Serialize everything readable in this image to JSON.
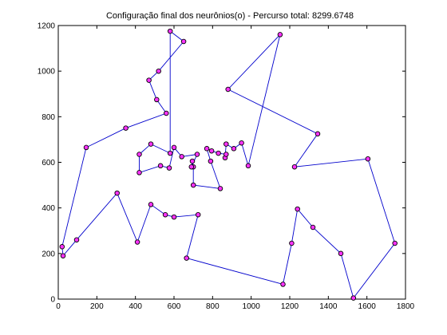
{
  "chart_data": {
    "type": "line",
    "title": "Configuração final dos neurônios(o) - Percurso total: 8299.6748",
    "xlabel": "",
    "ylabel": "",
    "xlim": [
      0,
      1800
    ],
    "ylim": [
      0,
      1200
    ],
    "xticks": [
      0,
      200,
      400,
      600,
      800,
      1000,
      1200,
      1400,
      1600,
      1800
    ],
    "yticks": [
      0,
      200,
      400,
      600,
      800,
      1000,
      1200
    ],
    "closed": true,
    "line_color": "#0000cc",
    "marker_color": "#ff33ff",
    "points": [
      [
        580,
        1175
      ],
      [
        650,
        1130
      ],
      [
        520,
        1000
      ],
      [
        470,
        960
      ],
      [
        510,
        875
      ],
      [
        560,
        815
      ],
      [
        350,
        750
      ],
      [
        145,
        665
      ],
      [
        20,
        230
      ],
      [
        25,
        190
      ],
      [
        95,
        260
      ],
      [
        305,
        465
      ],
      [
        410,
        250
      ],
      [
        480,
        415
      ],
      [
        555,
        370
      ],
      [
        600,
        360
      ],
      [
        725,
        370
      ],
      [
        665,
        180
      ],
      [
        1165,
        65
      ],
      [
        1210,
        245
      ],
      [
        1240,
        395
      ],
      [
        1320,
        315
      ],
      [
        1465,
        200
      ],
      [
        1530,
        5
      ],
      [
        1745,
        245
      ],
      [
        1605,
        615
      ],
      [
        1225,
        580
      ],
      [
        1345,
        725
      ],
      [
        880,
        920
      ],
      [
        1150,
        1160
      ],
      [
        985,
        585
      ],
      [
        950,
        685
      ],
      [
        910,
        660
      ],
      [
        870,
        680
      ],
      [
        865,
        620
      ],
      [
        870,
        635
      ],
      [
        830,
        640
      ],
      [
        795,
        650
      ],
      [
        770,
        660
      ],
      [
        790,
        605
      ],
      [
        840,
        485
      ],
      [
        700,
        500
      ],
      [
        700,
        580
      ],
      [
        695,
        605
      ],
      [
        690,
        580
      ],
      [
        720,
        635
      ],
      [
        640,
        625
      ],
      [
        600,
        665
      ],
      [
        575,
        575
      ],
      [
        530,
        585
      ],
      [
        420,
        555
      ],
      [
        420,
        635
      ],
      [
        480,
        680
      ],
      [
        580,
        640
      ]
    ]
  }
}
